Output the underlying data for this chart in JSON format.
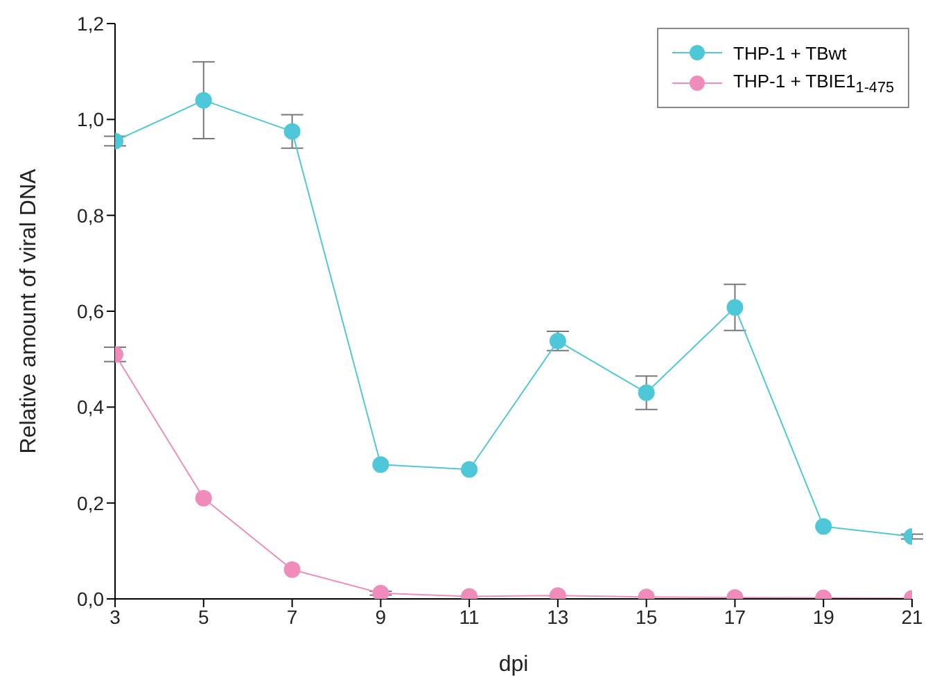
{
  "chart_data": {
    "type": "line",
    "xlabel": "dpi",
    "ylabel": "Relative amount of viral DNA",
    "x": [
      3,
      5,
      7,
      9,
      11,
      13,
      15,
      17,
      19,
      21
    ],
    "xlim": [
      3,
      21
    ],
    "xticks": [
      3,
      5,
      7,
      9,
      11,
      13,
      15,
      17,
      19,
      21
    ],
    "ylim": [
      0,
      1.2
    ],
    "yticks": [
      {
        "value": 0,
        "label": "0,0"
      },
      {
        "value": 0.2,
        "label": "0,2"
      },
      {
        "value": 0.4,
        "label": "0,4"
      },
      {
        "value": 0.6,
        "label": "0,6"
      },
      {
        "value": 0.8,
        "label": "0,8"
      },
      {
        "value": 1,
        "label": "1,0"
      },
      {
        "value": 1.2,
        "label": "1,2"
      }
    ],
    "marker": "circle",
    "legend": "top right",
    "grid": false,
    "series": [
      {
        "name": "THP-1 + TBwt",
        "color": "#4ec8d8",
        "values": [
          0.955,
          1.04,
          0.975,
          0.28,
          0.27,
          0.538,
          0.43,
          0.608,
          0.151,
          0.13
        ],
        "errors": [
          0.01,
          0.08,
          0.035,
          null,
          null,
          0.02,
          0.035,
          0.048,
          null,
          0.005
        ]
      },
      {
        "name": "THP-1 + TBIE1$_{1-475}$",
        "color": "#f08cbc",
        "values": [
          0.51,
          0.21,
          0.061,
          0.012,
          0.005,
          0.007,
          0.004,
          0.003,
          0.002,
          0.001
        ],
        "errors": [
          0.015,
          null,
          null,
          0.004,
          null,
          null,
          null,
          null,
          null,
          null
        ]
      }
    ]
  }
}
